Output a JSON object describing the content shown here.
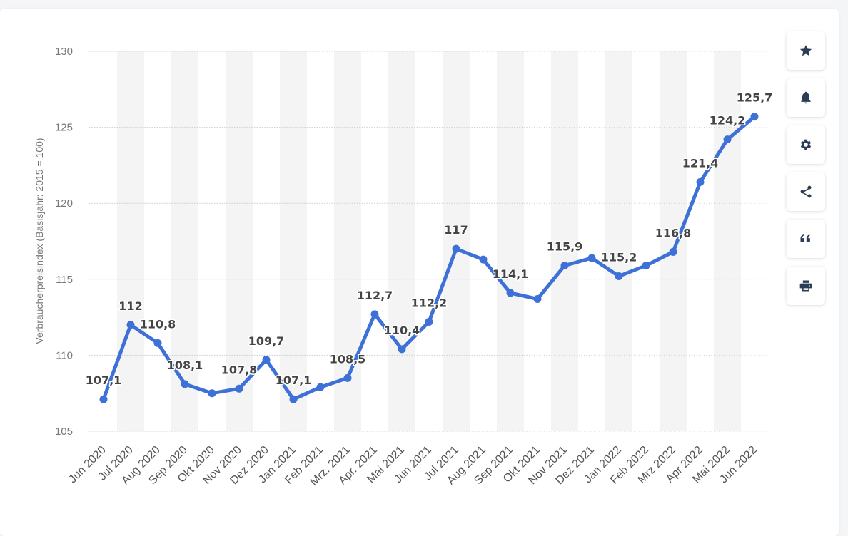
{
  "toolbar": {
    "buttons": [
      {
        "icon": "star-icon"
      },
      {
        "icon": "bell-icon"
      },
      {
        "icon": "gear-icon"
      },
      {
        "icon": "share-icon"
      },
      {
        "icon": "quote-icon"
      },
      {
        "icon": "print-icon"
      }
    ],
    "icon_color": "#2b3d55"
  },
  "chart_data": {
    "type": "line",
    "ylabel": "Verbraucherpreisindex (Basisjahr: 2015 = 100)",
    "ylim": [
      105,
      130
    ],
    "yticks": [
      105,
      110,
      115,
      120,
      125,
      130
    ],
    "grid": true,
    "line_color": "#3e71d8",
    "categories": [
      "Jun 2020",
      "Jul 2020",
      "Aug 2020",
      "Sep 2020",
      "Okt 2020",
      "Nov 2020",
      "Dez 2020",
      "Jan 2021",
      "Feb 2021",
      "Mrz. 2021",
      "Apr. 2021",
      "Mai 2021",
      "Jun 2021",
      "Jul 2021",
      "Aug 2021",
      "Sep 2021",
      "Okt 2021",
      "Nov 2021",
      "Dez 2021",
      "Jan 2022",
      "Feb 2022",
      "Mrz 2022",
      "Apr 2022",
      "Mai 2022",
      "Jun 2022"
    ],
    "values": [
      107.1,
      112,
      110.8,
      108.1,
      107.5,
      107.8,
      109.7,
      107.1,
      107.9,
      108.5,
      112.7,
      110.4,
      112.2,
      117,
      116.3,
      114.1,
      113.7,
      115.9,
      116.4,
      115.2,
      115.9,
      116.8,
      121.4,
      124.2,
      125.7
    ],
    "data_labels": [
      "107,1",
      "112",
      "110,8",
      "108,1",
      "",
      "107,8",
      "109,7",
      "107,1",
      "",
      "108,5",
      "112,7",
      "110,4",
      "112,2",
      "117",
      "",
      "114,1",
      "",
      "115,9",
      "",
      "115,2",
      "",
      "116,8",
      "121,4",
      "124,2",
      "125,7"
    ]
  }
}
